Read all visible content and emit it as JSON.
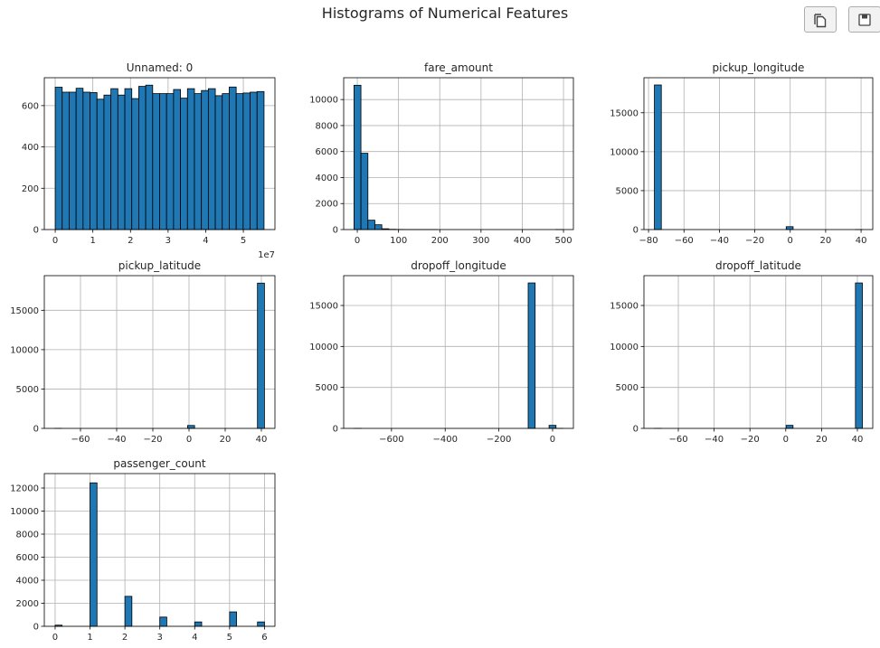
{
  "figure_title": "Histograms of Numerical Features",
  "toolbar": {
    "copy_icon": "copy-icon",
    "save_icon": "floppy-disk-save-icon"
  },
  "colors": {
    "bar_fill": "#1f77b4",
    "bar_edge": "#000000",
    "grid": "#b0b0b0"
  },
  "chart_data": [
    {
      "type": "bar",
      "title": "Unnamed: 0",
      "xlim": [
        -2900000,
        58400000
      ],
      "ylim": [
        0,
        735
      ],
      "xticks": [
        0,
        10000000,
        20000000,
        30000000,
        40000000,
        50000000
      ],
      "xtick_labels": [
        "0",
        "1",
        "2",
        "3",
        "4",
        "5"
      ],
      "x_offset_label": "1e7",
      "yticks": [
        0,
        200,
        400,
        600
      ],
      "ytick_labels": [
        "0",
        "200",
        "400",
        "600"
      ],
      "grid": true,
      "bin_range": [
        0,
        55500000
      ],
      "counts": [
        689,
        665,
        665,
        684,
        665,
        663,
        631,
        651,
        682,
        651,
        682,
        634,
        693,
        699,
        658,
        658,
        658,
        678,
        636,
        682,
        658,
        673,
        682,
        648,
        658,
        690,
        658,
        661,
        665,
        668
      ]
    },
    {
      "type": "bar",
      "title": "fare_amount",
      "xlim": [
        -33,
        524
      ],
      "ylim": [
        0,
        11680
      ],
      "xticks": [
        0,
        100,
        200,
        300,
        400,
        500
      ],
      "xtick_labels": [
        "0",
        "100",
        "200",
        "300",
        "400",
        "500"
      ],
      "yticks": [
        0,
        2000,
        4000,
        6000,
        8000,
        10000
      ],
      "ytick_labels": [
        "0",
        "2000",
        "4000",
        "6000",
        "8000",
        "10000"
      ],
      "grid": true,
      "bin_range": [
        -8,
        498
      ],
      "counts": [
        11100,
        5870,
        720,
        370,
        60,
        20,
        10,
        5,
        3,
        2,
        1,
        1,
        0,
        0,
        0,
        0,
        0,
        0,
        0,
        0,
        0,
        0,
        0,
        0,
        0,
        0,
        0,
        0,
        0,
        1
      ]
    },
    {
      "type": "bar",
      "title": "pickup_longitude",
      "xlim": [
        -82.6,
        46.6
      ],
      "ylim": [
        0,
        19500
      ],
      "xticks": [
        -80,
        -60,
        -40,
        -20,
        0,
        20,
        40
      ],
      "xtick_labels": [
        "−80",
        "−60",
        "−40",
        "−20",
        "0",
        "20",
        "40"
      ],
      "yticks": [
        0,
        5000,
        10000,
        15000
      ],
      "ytick_labels": [
        "0",
        "5000",
        "10000",
        "15000"
      ],
      "grid": true,
      "bin_range": [
        -76.7,
        40.8
      ],
      "counts": [
        18570,
        0,
        0,
        0,
        0,
        0,
        0,
        0,
        0,
        0,
        0,
        0,
        0,
        0,
        0,
        0,
        0,
        0,
        0,
        370,
        0,
        0,
        0,
        0,
        0,
        0,
        0,
        0,
        0,
        1
      ]
    },
    {
      "type": "bar",
      "title": "pickup_latitude",
      "xlim": [
        -80,
        47.5
      ],
      "ylim": [
        0,
        19400
      ],
      "xticks": [
        -60,
        -40,
        -20,
        0,
        20,
        40
      ],
      "xtick_labels": [
        "−60",
        "−40",
        "−20",
        "0",
        "20",
        "40"
      ],
      "yticks": [
        0,
        5000,
        10000,
        15000
      ],
      "ytick_labels": [
        "0",
        "5000",
        "10000",
        "15000"
      ],
      "grid": true,
      "bin_range": [
        -74.2,
        41.7
      ],
      "counts": [
        1,
        0,
        0,
        0,
        0,
        0,
        0,
        0,
        0,
        0,
        0,
        0,
        0,
        0,
        0,
        0,
        0,
        0,
        0,
        370,
        0,
        0,
        0,
        0,
        0,
        0,
        0,
        0,
        0,
        18450
      ]
    },
    {
      "type": "bar",
      "title": "dropoff_longitude",
      "xlim": [
        -778,
        77.5
      ],
      "ylim": [
        0,
        18640
      ],
      "xticks": [
        -600,
        -400,
        -200,
        0
      ],
      "xtick_labels": [
        "−600",
        "−400",
        "−200",
        "0"
      ],
      "yticks": [
        0,
        5000,
        10000,
        15000
      ],
      "ytick_labels": [
        "0",
        "5000",
        "10000",
        "15000"
      ],
      "grid": true,
      "bin_range": [
        -739,
        38.7
      ],
      "counts": [
        1,
        0,
        0,
        0,
        0,
        0,
        0,
        0,
        0,
        0,
        0,
        0,
        0,
        0,
        0,
        0,
        0,
        0,
        0,
        0,
        0,
        0,
        0,
        0,
        0,
        17750,
        0,
        0,
        370,
        1
      ]
    },
    {
      "type": "bar",
      "title": "dropoff_latitude",
      "xlim": [
        -79.2,
        48.6
      ],
      "ylim": [
        0,
        18640
      ],
      "xticks": [
        -60,
        -40,
        -20,
        0,
        20,
        40
      ],
      "xtick_labels": [
        "−60",
        "−40",
        "−20",
        "0",
        "20",
        "40"
      ],
      "yticks": [
        0,
        5000,
        10000,
        15000
      ],
      "ytick_labels": [
        "0",
        "5000",
        "10000",
        "15000"
      ],
      "grid": true,
      "bin_range": [
        -73.4,
        42.8
      ],
      "counts": [
        1,
        0,
        0,
        0,
        0,
        0,
        0,
        0,
        0,
        0,
        0,
        0,
        0,
        0,
        0,
        0,
        0,
        0,
        0,
        370,
        0,
        0,
        0,
        0,
        0,
        0,
        0,
        0,
        0,
        17750
      ]
    },
    {
      "type": "bar",
      "title": "passenger_count",
      "xlim": [
        -0.31,
        6.3
      ],
      "ylim": [
        0,
        13255
      ],
      "xticks": [
        0,
        1,
        2,
        3,
        4,
        5,
        6
      ],
      "xtick_labels": [
        "0",
        "1",
        "2",
        "3",
        "4",
        "5",
        "6"
      ],
      "yticks": [
        0,
        2000,
        4000,
        6000,
        8000,
        10000,
        12000
      ],
      "ytick_labels": [
        "0",
        "2000",
        "4000",
        "6000",
        "8000",
        "10000",
        "12000"
      ],
      "grid": true,
      "bin_range": [
        0,
        6
      ],
      "counts": [
        100,
        0,
        0,
        0,
        0,
        12450,
        0,
        0,
        0,
        0,
        2600,
        0,
        0,
        0,
        0,
        800,
        0,
        0,
        0,
        0,
        380,
        0,
        0,
        0,
        0,
        1250,
        0,
        0,
        0,
        380
      ]
    }
  ]
}
